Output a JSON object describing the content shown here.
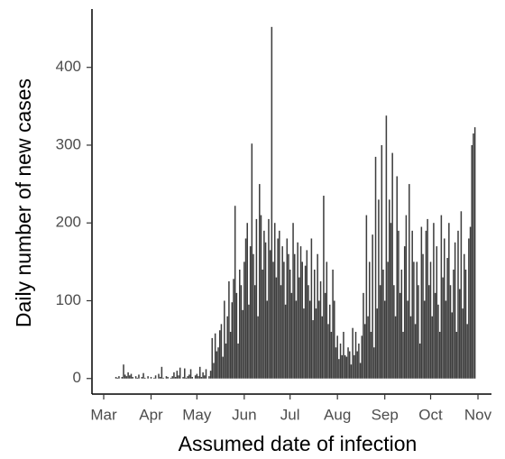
{
  "chart_data": {
    "type": "bar",
    "x_label": "Assumed date of infection",
    "y_label": "Daily number of new cases",
    "color": "#3d3d3d",
    "grid": false,
    "ylim": [
      -20,
      475
    ],
    "yticks": [
      0,
      100,
      200,
      300,
      400
    ],
    "categories": [
      "Mar",
      null,
      null,
      null,
      null,
      null,
      null,
      null,
      null,
      null,
      null,
      null,
      null,
      null,
      null,
      null,
      null,
      null,
      null,
      null,
      null,
      null,
      null,
      null,
      null,
      null,
      null,
      null,
      null,
      null,
      null,
      "Apr",
      null,
      null,
      null,
      null,
      null,
      null,
      null,
      null,
      null,
      null,
      null,
      null,
      null,
      null,
      null,
      null,
      null,
      null,
      null,
      null,
      null,
      null,
      null,
      null,
      null,
      null,
      null,
      null,
      null,
      "May",
      null,
      null,
      null,
      null,
      null,
      null,
      null,
      null,
      null,
      null,
      null,
      null,
      null,
      null,
      null,
      null,
      null,
      null,
      null,
      null,
      null,
      null,
      null,
      null,
      null,
      null,
      null,
      null,
      null,
      null,
      "Jun",
      null,
      null,
      null,
      null,
      null,
      null,
      null,
      null,
      null,
      null,
      null,
      null,
      null,
      null,
      null,
      null,
      null,
      null,
      null,
      null,
      null,
      null,
      null,
      null,
      null,
      null,
      null,
      null,
      null,
      "Jul",
      null,
      null,
      null,
      null,
      null,
      null,
      null,
      null,
      null,
      null,
      null,
      null,
      null,
      null,
      null,
      null,
      null,
      null,
      null,
      null,
      null,
      null,
      null,
      null,
      null,
      null,
      null,
      null,
      null,
      null,
      "Aug",
      null,
      null,
      null,
      null,
      null,
      null,
      null,
      null,
      null,
      null,
      null,
      null,
      null,
      null,
      null,
      null,
      null,
      null,
      null,
      null,
      null,
      null,
      null,
      null,
      null,
      null,
      null,
      null,
      null,
      null,
      "Sep",
      null,
      null,
      null,
      null,
      null,
      null,
      null,
      null,
      null,
      null,
      null,
      null,
      null,
      null,
      null,
      null,
      null,
      null,
      null,
      null,
      null,
      null,
      null,
      null,
      null,
      null,
      null,
      null,
      null,
      "Oct",
      null,
      null,
      null,
      null,
      null,
      null,
      null,
      null,
      null,
      null,
      null,
      null,
      null,
      null,
      null,
      null,
      null,
      null,
      null,
      null,
      null,
      null,
      null,
      null,
      null,
      null,
      null,
      null,
      null,
      null,
      "Nov",
      null,
      null,
      null,
      null,
      null,
      null,
      null,
      null
    ],
    "values": [
      0,
      0,
      0,
      0,
      0,
      0,
      0,
      0,
      2,
      1,
      3,
      0,
      2,
      18,
      5,
      3,
      8,
      4,
      6,
      2,
      0,
      3,
      1,
      5,
      0,
      2,
      7,
      1,
      0,
      3,
      0,
      2,
      0,
      1,
      4,
      0,
      6,
      2,
      15,
      1,
      0,
      3,
      2,
      0,
      1,
      3,
      8,
      2,
      10,
      4,
      14,
      0,
      2,
      13,
      1,
      3,
      5,
      12,
      2,
      0,
      4,
      6,
      3,
      15,
      2,
      8,
      4,
      12,
      0,
      3,
      10,
      52,
      20,
      58,
      35,
      40,
      62,
      70,
      28,
      100,
      45,
      80,
      125,
      60,
      98,
      128,
      222,
      110,
      45,
      140,
      120,
      88,
      150,
      180,
      200,
      95,
      170,
      302,
      160,
      120,
      205,
      80,
      250,
      210,
      140,
      190,
      175,
      100,
      205,
      165,
      452,
      150,
      200,
      130,
      180,
      190,
      120,
      170,
      150,
      95,
      180,
      160,
      140,
      110,
      200,
      160,
      100,
      175,
      130,
      170,
      150,
      90,
      145,
      165,
      120,
      100,
      180,
      75,
      140,
      90,
      160,
      100,
      125,
      80,
      235,
      110,
      150,
      70,
      95,
      60,
      140,
      100,
      40,
      55,
      25,
      45,
      30,
      60,
      30,
      28,
      40,
      35,
      18,
      65,
      30,
      60,
      35,
      45,
      20,
      55,
      110,
      70,
      210,
      80,
      150,
      60,
      185,
      40,
      285,
      90,
      230,
      120,
      300,
      140,
      100,
      338,
      150,
      230,
      200,
      290,
      120,
      80,
      260,
      190,
      110,
      140,
      60,
      170,
      210,
      100,
      250,
      80,
      190,
      150,
      70,
      150,
      120,
      45,
      195,
      160,
      100,
      190,
      205,
      120,
      150,
      80,
      200,
      110,
      170,
      95,
      60,
      210,
      130,
      180,
      100,
      155,
      200,
      120,
      85,
      140,
      175,
      60,
      190,
      115,
      215,
      90,
      160,
      140,
      70,
      180,
      195,
      300,
      315,
      323,
      null,
      null,
      null,
      null,
      null,
      null,
      null,
      null,
      null,
      null
    ]
  }
}
